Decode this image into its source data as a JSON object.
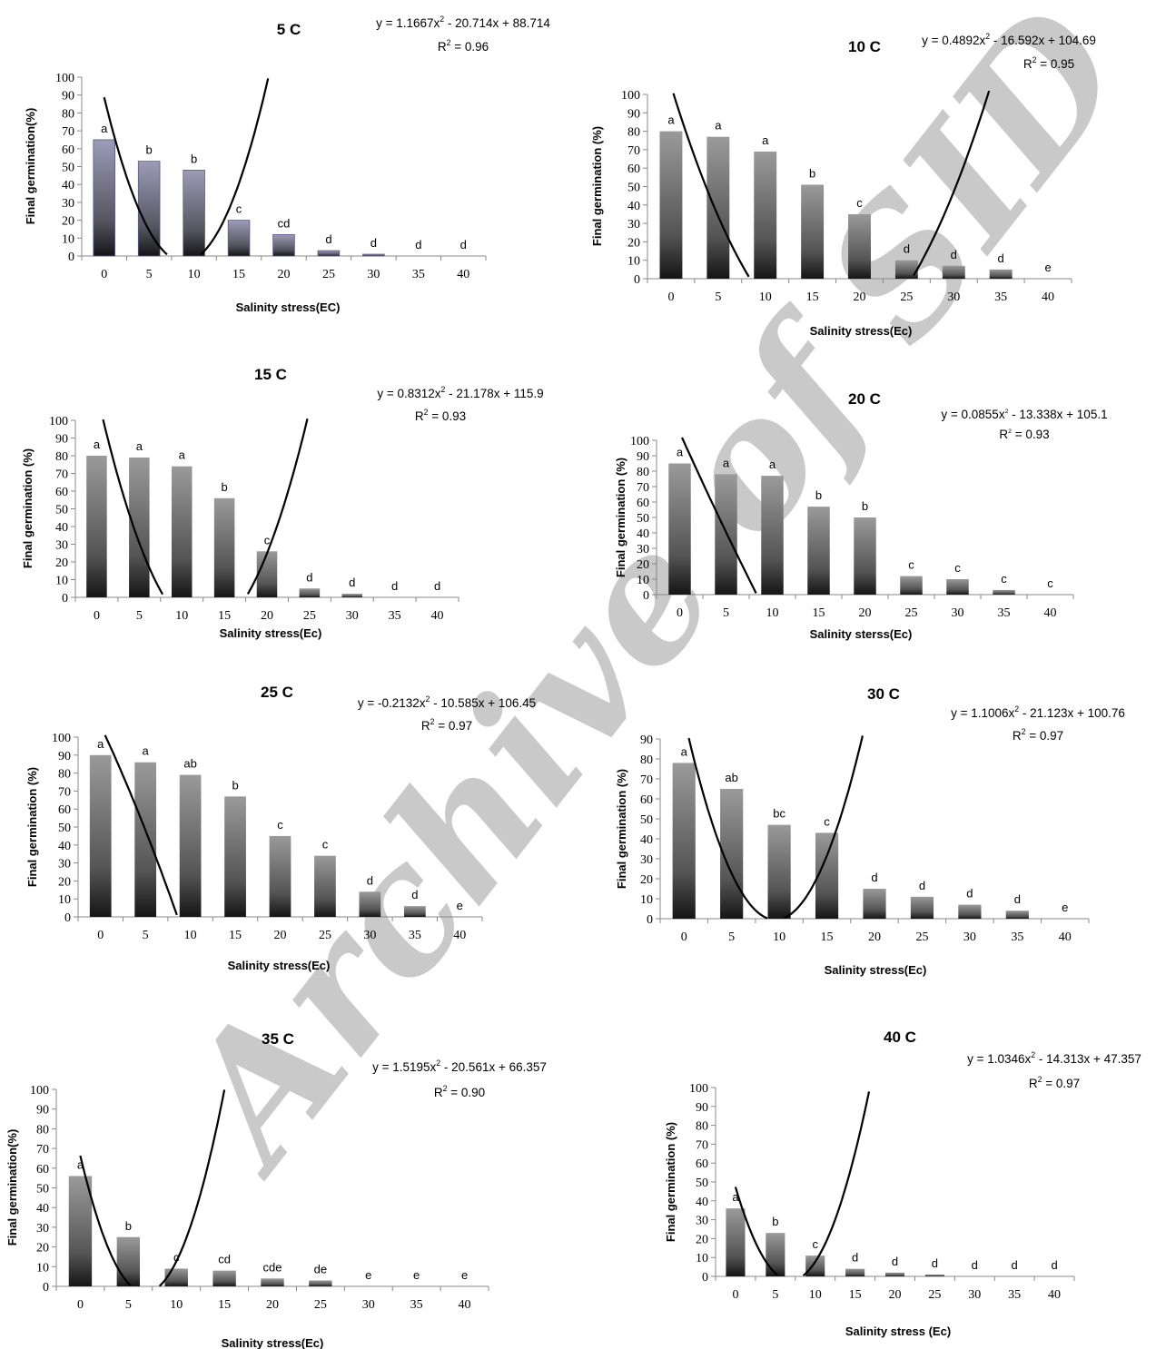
{
  "watermark": "Archive of SID",
  "chart_data": [
    {
      "type": "bar",
      "title": "5 C",
      "equation": {
        "prefix": "y = 1.1667x",
        "suffix": " - 20.714x + 88.714"
      },
      "r2": " = 0.96",
      "xlabel": "Salinity stress(EC)",
      "ylabel": "Final germination(%)",
      "categories": [
        "0",
        "5",
        "10",
        "15",
        "20",
        "25",
        "30",
        "35",
        "40"
      ],
      "values": [
        65,
        53,
        48,
        20,
        12,
        3,
        1,
        0,
        0
      ],
      "letters": [
        "a",
        "b",
        "b",
        "c",
        "cd",
        "d",
        "d",
        "d",
        "d"
      ],
      "ylim": [
        0,
        100
      ],
      "yticks": [
        0,
        10,
        20,
        30,
        40,
        50,
        60,
        70,
        80,
        90,
        100
      ],
      "fit": {
        "a": 1.1667,
        "b": -20.714,
        "c": 88.714
      },
      "bar_fill": "#9a9ab4"
    },
    {
      "type": "bar",
      "title": "10 C",
      "equation": {
        "prefix": "y = 0.4892x",
        "suffix": " - 16.592x + 104.69"
      },
      "r2": " = 0.95",
      "xlabel": "Salinity stress(Ec)",
      "ylabel": "Final germination (%)",
      "categories": [
        "0",
        "5",
        "10",
        "15",
        "20",
        "25",
        "30",
        "35",
        "40"
      ],
      "values": [
        80,
        77,
        69,
        51,
        35,
        10,
        7,
        5,
        0
      ],
      "letters": [
        "a",
        "a",
        "a",
        "b",
        "c",
        "d",
        "d",
        "d",
        "e"
      ],
      "ylim": [
        0,
        100
      ],
      "yticks": [
        0,
        10,
        20,
        30,
        40,
        50,
        60,
        70,
        80,
        90,
        100
      ],
      "fit": {
        "a": 0.4892,
        "b": -16.592,
        "c": 104.69
      },
      "bar_fill": "#8a8a8a"
    },
    {
      "type": "bar",
      "title": "15 C",
      "equation": {
        "prefix": "y = 0.8312x",
        "suffix": " - 21.178x + 115.9"
      },
      "r2": " = 0.93",
      "xlabel": "Salinity stress(Ec)",
      "ylabel": "Final germination (%)",
      "categories": [
        "0",
        "5",
        "10",
        "15",
        "20",
        "25",
        "30",
        "35",
        "40"
      ],
      "values": [
        80,
        79,
        74,
        56,
        26,
        5,
        2,
        0,
        0
      ],
      "letters": [
        "a",
        "a",
        "a",
        "b",
        "c",
        "d",
        "d",
        "d",
        "d"
      ],
      "ylim": [
        0,
        100
      ],
      "yticks": [
        0,
        10,
        20,
        30,
        40,
        50,
        60,
        70,
        80,
        90,
        100
      ],
      "fit": {
        "a": 0.8312,
        "b": -21.178,
        "c": 115.9
      },
      "bar_fill": "#8a8a8a"
    },
    {
      "type": "bar",
      "title": "20 C",
      "equation": {
        "prefix": "y = 0.0855x",
        "suffix": " - 13.338x + 105.1"
      },
      "r2": " = 0.93",
      "xlabel": "Salinity sterss(Ec)",
      "ylabel": "Final germination (%)",
      "categories": [
        "0",
        "5",
        "10",
        "15",
        "20",
        "25",
        "30",
        "35",
        "40"
      ],
      "values": [
        85,
        78,
        77,
        57,
        50,
        12,
        10,
        3,
        0
      ],
      "letters": [
        "a",
        "a",
        "a",
        "b",
        "b",
        "c",
        "c",
        "c",
        "c"
      ],
      "ylim": [
        0,
        100
      ],
      "yticks": [
        0,
        10,
        20,
        30,
        40,
        50,
        60,
        70,
        80,
        90,
        100
      ],
      "fit": {
        "a": 0.0855,
        "b": -13.338,
        "c": 105.1
      },
      "bar_fill": "#8a8a8a"
    },
    {
      "type": "bar",
      "title": "25 C",
      "equation": {
        "prefix": "y = -0.2132x",
        "suffix": " - 10.585x + 106.45"
      },
      "r2": " = 0.97",
      "xlabel": "Salinity stress(Ec)",
      "ylabel": "Final germination (%)",
      "categories": [
        "0",
        "5",
        "10",
        "15",
        "20",
        "25",
        "30",
        "35",
        "40"
      ],
      "values": [
        90,
        86,
        79,
        67,
        45,
        34,
        14,
        6,
        0
      ],
      "letters": [
        "a",
        "a",
        "ab",
        "b",
        "c",
        "c",
        "d",
        "d",
        "e"
      ],
      "ylim": [
        0,
        100
      ],
      "yticks": [
        0,
        10,
        20,
        30,
        40,
        50,
        60,
        70,
        80,
        90,
        100
      ],
      "fit": {
        "a": -0.2132,
        "b": -10.585,
        "c": 106.45
      },
      "bar_fill": "#8a8a8a"
    },
    {
      "type": "bar",
      "title": "30 C",
      "equation": {
        "prefix": "y = 1.1006x",
        "suffix": " - 21.123x + 100.76"
      },
      "r2": " = 0.97",
      "xlabel": "Salinity stress(Ec)",
      "ylabel": "Final germination (%)",
      "categories": [
        "0",
        "5",
        "10",
        "15",
        "20",
        "25",
        "30",
        "35",
        "40"
      ],
      "values": [
        78,
        65,
        47,
        43,
        15,
        11,
        7,
        4,
        0
      ],
      "letters": [
        "a",
        "ab",
        "bc",
        "c",
        "d",
        "d",
        "d",
        "d",
        "e"
      ],
      "ylim": [
        0,
        90
      ],
      "yticks": [
        0,
        10,
        20,
        30,
        40,
        50,
        60,
        70,
        80,
        90
      ],
      "fit": {
        "a": 1.1006,
        "b": -21.123,
        "c": 100.76
      },
      "bar_fill": "#8a8a8a"
    },
    {
      "type": "bar",
      "title": "35 C",
      "equation": {
        "prefix": "y = 1.5195x",
        "suffix": " - 20.561x + 66.357"
      },
      "r2": " = 0.90",
      "xlabel": "Salinity stress(Ec)",
      "ylabel": "Final germination(%)",
      "categories": [
        "0",
        "5",
        "10",
        "15",
        "20",
        "25",
        "30",
        "35",
        "40"
      ],
      "values": [
        56,
        25,
        9,
        8,
        4,
        3,
        0,
        0,
        0
      ],
      "letters": [
        "a",
        "b",
        "c",
        "cd",
        "cde",
        "de",
        "e",
        "e",
        "e"
      ],
      "ylim": [
        0,
        100
      ],
      "yticks": [
        0,
        10,
        20,
        30,
        40,
        50,
        60,
        70,
        80,
        90,
        100
      ],
      "fit": {
        "a": 1.5195,
        "b": -20.561,
        "c": 66.357
      },
      "bar_fill": "#8a8a8a"
    },
    {
      "type": "bar",
      "title": "40 C",
      "equation": {
        "prefix": "y = 1.0346x",
        "suffix": " - 14.313x + 47.357"
      },
      "r2": " = 0.97",
      "xlabel": "Salinity stress (Ec)",
      "ylabel": "Final germination (%)",
      "categories": [
        "0",
        "5",
        "10",
        "15",
        "20",
        "25",
        "30",
        "35",
        "40"
      ],
      "values": [
        36,
        23,
        11,
        4,
        2,
        1,
        0,
        0,
        0
      ],
      "letters": [
        "a",
        "b",
        "c",
        "d",
        "d",
        "d",
        "d",
        "d",
        "d"
      ],
      "ylim": [
        0,
        100
      ],
      "yticks": [
        0,
        10,
        20,
        30,
        40,
        50,
        60,
        70,
        80,
        90,
        100
      ],
      "fit": {
        "a": 1.0346,
        "b": -14.313,
        "c": 47.357
      },
      "bar_fill": "#8a8a8a"
    }
  ]
}
